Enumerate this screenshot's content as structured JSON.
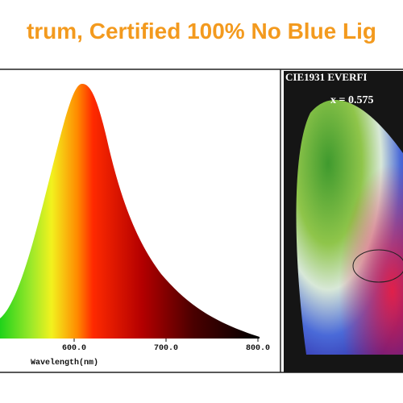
{
  "header": {
    "title": "trum, Certified 100% No Blue Lig"
  },
  "spectrum": {
    "x_label": "Wavelength(nm)",
    "xticks": [
      {
        "value": 600,
        "label": "600.0"
      },
      {
        "value": 700,
        "label": "700.0"
      },
      {
        "value": 800,
        "label": "800.0"
      }
    ]
  },
  "cie": {
    "title": "CIE1931 EVERFI",
    "readout": "x = 0.575"
  }
}
